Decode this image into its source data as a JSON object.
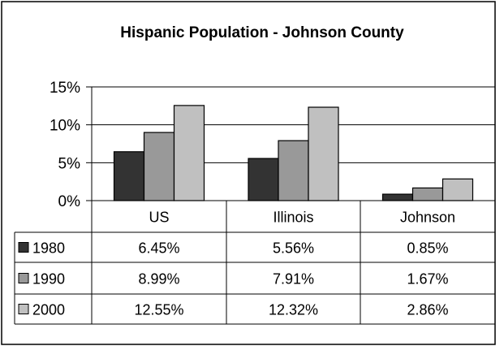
{
  "chart_data": {
    "type": "bar",
    "title": "Hispanic Population - Johnson County",
    "categories": [
      "US",
      "Illinois",
      "Johnson"
    ],
    "series": [
      {
        "name": "1980",
        "values": [
          6.45,
          5.56,
          0.85
        ],
        "labels": [
          "6.45%",
          "5.56%",
          "0.85%"
        ],
        "color": "#333333"
      },
      {
        "name": "1990",
        "values": [
          8.99,
          7.91,
          1.67
        ],
        "labels": [
          "8.99%",
          "7.91%",
          "1.67%"
        ],
        "color": "#999999"
      },
      {
        "name": "2000",
        "values": [
          12.55,
          12.32,
          2.86
        ],
        "labels": [
          "12.55%",
          "12.32%",
          "2.86%"
        ],
        "color": "#c0c0c0"
      }
    ],
    "ylim": [
      0,
      15
    ],
    "yticks": [
      0,
      5,
      10,
      15
    ],
    "ytick_labels": [
      "0%",
      "5%",
      "10%",
      "15%"
    ],
    "grid": true,
    "legend": "data-table-left",
    "data_table": true
  }
}
